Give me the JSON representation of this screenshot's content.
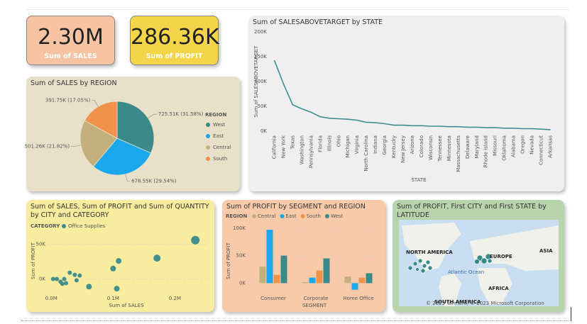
{
  "kpis": [
    {
      "value": "2.30M",
      "label": "Sum of SALES"
    },
    {
      "value": "286.36K",
      "label": "Sum of PROFIT"
    }
  ],
  "chart_data": [
    {
      "type": "line",
      "title": "Sum of SALESABOVETARGET by STATE",
      "xlabel": "STATE",
      "ylabel": "Sum of SALESABOVETARGET",
      "color": "#3f8f8f",
      "categories": [
        "California",
        "New York",
        "Texas",
        "Washington",
        "Pennsylvania",
        "Florida",
        "Illinois",
        "Ohio",
        "Michigan",
        "Virginia",
        "North Carolina",
        "Indiana",
        "Georgia",
        "Kentucky",
        "New Jersey",
        "Arizona",
        "Colorado",
        "Wisconsin",
        "Tennessee",
        "Minnesota",
        "Massachusetts",
        "Delaware",
        "Maryland",
        "Rhode Island",
        "Missouri",
        "Oklahoma",
        "Alabama",
        "Oregon",
        "Nevada",
        "Connecticut",
        "Arkansas"
      ],
      "values": [
        143000,
        95000,
        53000,
        45000,
        38000,
        29000,
        26000,
        25000,
        24000,
        22000,
        18000,
        17000,
        15000,
        12000,
        12000,
        11000,
        11000,
        10000,
        10000,
        9000,
        9000,
        8000,
        8000,
        7000,
        7000,
        6000,
        6000,
        5000,
        5000,
        4000,
        3000
      ],
      "ylim": [
        0,
        200000
      ],
      "yticks": [
        {
          "value": 0,
          "label": "0K"
        },
        {
          "value": 50000,
          "label": "50K"
        },
        {
          "value": 100000,
          "label": "100K"
        },
        {
          "value": 150000,
          "label": "150K"
        },
        {
          "value": 200000,
          "label": "200K"
        }
      ]
    },
    {
      "type": "pie",
      "title": "Sum of SALES by REGION",
      "legend_title": "REGION",
      "categories": [
        "West",
        "East",
        "Central",
        "South"
      ],
      "values": [
        725510,
        678550,
        501260,
        391750
      ],
      "value_labels": [
        "725.51K (31.58%)",
        "678.55K (29.54%)",
        "501.26K (21.82%)",
        "391.75K (17.05%)"
      ],
      "colors": [
        "#3a8a8a",
        "#1aa7ec",
        "#c4b07c",
        "#f0924a"
      ]
    },
    {
      "type": "scatter",
      "title": "Sum of SALES, Sum of PROFIT and Sum of QUANTITY by CITY and CATEGORY",
      "legend_title": "CATEGORY",
      "xlabel": "Sum of SALES",
      "ylabel": "Sum of PROFIT",
      "series": [
        {
          "name": "Office Supplies",
          "color": "#3a8a8a",
          "x": [
            233000,
            171000,
            109000,
            100000,
            106000,
            61000,
            38000,
            41000,
            30000,
            21000,
            15000,
            9000,
            3000,
            24000,
            18000,
            46000
          ],
          "values": [
            56000,
            30000,
            26000,
            15000,
            -14000,
            -11000,
            6000,
            -2000,
            9000,
            0,
            -4000,
            0,
            0,
            -6000,
            -7000,
            5000
          ],
          "sizes": [
            6,
            5,
            4,
            4,
            4,
            4,
            3,
            3,
            3,
            3,
            3,
            3,
            3,
            3,
            3,
            3
          ]
        }
      ],
      "xlim": [
        -14000,
        250000
      ],
      "xticks": [
        {
          "value": 0,
          "label": "0.0M"
        },
        {
          "value": 100000,
          "label": "0.1M"
        },
        {
          "value": 200000,
          "label": "0.2M"
        }
      ],
      "ylim": [
        -22000,
        70000
      ],
      "yticks": [
        {
          "value": 0,
          "label": "0K"
        },
        {
          "value": 50000,
          "label": "50K"
        }
      ]
    },
    {
      "type": "bar",
      "title": "Sum of PROFIT by SEGMENT and REGION",
      "legend_title": "REGION",
      "xlabel": "SEGMENT",
      "ylabel": "Sum of PROFIT",
      "categories": [
        "Consumer",
        "Corporate",
        "Home Office"
      ],
      "series": [
        {
          "name": "Central",
          "color": "#c4b07c",
          "values": [
            30000,
            2000,
            12000
          ]
        },
        {
          "name": "East",
          "color": "#1aa7ec",
          "values": [
            97000,
            10000,
            -12000
          ]
        },
        {
          "name": "South",
          "color": "#f0924a",
          "values": [
            15000,
            23000,
            10000
          ]
        },
        {
          "name": "West",
          "color": "#3a8a8a",
          "values": [
            50000,
            45000,
            18000
          ]
        }
      ],
      "ylim": [
        -15000,
        110000
      ],
      "yticks": [
        {
          "value": 0,
          "label": "0K"
        },
        {
          "value": 50000,
          "label": "50K"
        },
        {
          "value": 100000,
          "label": "100K"
        }
      ]
    }
  ],
  "map": {
    "title": "Sum of PROFIT, First CITY and First STATE by LATITUDE",
    "labels": [
      "NORTH AMERICA",
      "EUROPE",
      "ASIA",
      "Atlantic Ocean",
      "AFRICA",
      "SOUTH AMERICA"
    ],
    "attribution": "© 2023 TomTom, © 2023 Microsoft Corporation"
  }
}
